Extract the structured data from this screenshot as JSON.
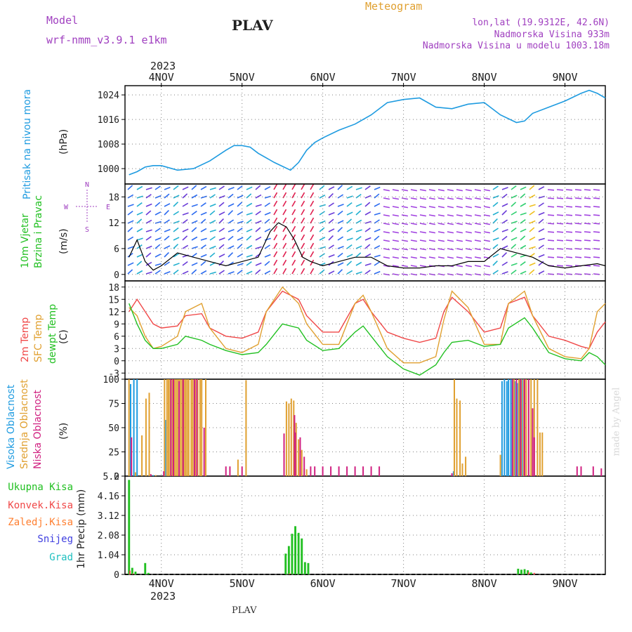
{
  "header": {
    "model_label": "Model",
    "model_name": "wrf-nmm_v3.9.1 e1km",
    "station": "PLAV",
    "meteogram": "Meteogram",
    "lonlat": "lon,lat (19.9312E, 42.6N)",
    "elevation": "Nadmorska Visina 933m",
    "model_elevation": "Nadmorska Visina u modelu 1003.18m"
  },
  "footer": {
    "station": "PLAV",
    "credit": "made by Angel"
  },
  "colors": {
    "pressure": "#1e9be0",
    "t2m": "#f04848",
    "tsfc": "#e0a030",
    "dewpt": "#22c022",
    "cloud_high": "#1e9be0",
    "cloud_mid": "#e0a030",
    "cloud_low": "#d02080",
    "rain_total": "#22c022",
    "rain_conv": "#f04848",
    "rain_frozen": "#ff7f30",
    "snow": "#4040e0",
    "graupel": "#20c0c0",
    "wind_axis": "#a040c0"
  },
  "wind_legend": {
    "w": "W",
    "e": "E",
    "n": "N",
    "s": "S"
  },
  "chart_data": [
    {
      "type": "line",
      "name": "pressure",
      "ylabel": "Pritisak na nivou mora",
      "unit": "(hPa)",
      "ylim": [
        995,
        1027
      ],
      "yticks": [
        1000,
        1008,
        1016,
        1024
      ],
      "x_days": [
        "4NOV",
        "5NOV",
        "6NOV",
        "7NOV",
        "8NOV",
        "9NOV"
      ],
      "year": "2023",
      "x": [
        3.6,
        3.7,
        3.8,
        3.9,
        4.0,
        4.2,
        4.4,
        4.6,
        4.8,
        4.9,
        5.0,
        5.1,
        5.2,
        5.4,
        5.6,
        5.7,
        5.8,
        5.9,
        6.0,
        6.2,
        6.4,
        6.6,
        6.8,
        7.0,
        7.2,
        7.4,
        7.6,
        7.8,
        8.0,
        8.2,
        8.4,
        8.5,
        8.6,
        8.8,
        9.0,
        9.2,
        9.3,
        9.4,
        9.5
      ],
      "values": [
        998,
        999,
        1000.5,
        1001,
        1001,
        999.5,
        1000,
        1002.5,
        1006,
        1007.5,
        1007.5,
        1007,
        1005,
        1002,
        999.5,
        1002,
        1006,
        1008.5,
        1010,
        1012.5,
        1014.5,
        1017.5,
        1021.5,
        1022.5,
        1023,
        1020,
        1019.5,
        1021,
        1021.5,
        1017.5,
        1015,
        1015.5,
        1018,
        1020,
        1022,
        1024.5,
        1025.5,
        1024.5,
        1023
      ]
    },
    {
      "type": "line",
      "name": "wind",
      "ylabel": "10m Vjetar",
      "ylabel2": "Brzina i Pravac",
      "unit": "(m/s)",
      "ylim": [
        -1.5,
        21
      ],
      "yticks": [
        0,
        6,
        12,
        18
      ],
      "x": [
        3.6,
        3.7,
        3.8,
        3.9,
        4.0,
        4.2,
        4.4,
        4.6,
        4.8,
        5.0,
        5.2,
        5.35,
        5.45,
        5.55,
        5.65,
        5.75,
        5.85,
        6.0,
        6.2,
        6.4,
        6.6,
        6.8,
        7.0,
        7.2,
        7.4,
        7.6,
        7.8,
        8.0,
        8.2,
        8.4,
        8.6,
        8.8,
        9.0,
        9.2,
        9.4,
        9.5
      ],
      "values": [
        4,
        8,
        3,
        1,
        2,
        5,
        4,
        3,
        2,
        3,
        4,
        10,
        12,
        11,
        8,
        4,
        3,
        2,
        3,
        4,
        4,
        2,
        1.5,
        1.5,
        2,
        2,
        3,
        3,
        6,
        5,
        4,
        2,
        1.5,
        2,
        2.5,
        2
      ]
    },
    {
      "type": "line",
      "name": "temperature",
      "ylabel": "2m Temp",
      "ylabel2": "SFC Temp",
      "ylabel3": "dewpt Temp",
      "unit": "(C)",
      "ylim": [
        -4.5,
        19.5
      ],
      "yticks": [
        -3,
        0,
        3,
        6,
        9,
        12,
        15,
        18
      ],
      "series": [
        {
          "name": "2m Temp",
          "x": [
            3.6,
            3.7,
            3.8,
            3.9,
            4.0,
            4.2,
            4.3,
            4.5,
            4.6,
            4.8,
            5.0,
            5.2,
            5.3,
            5.5,
            5.7,
            5.8,
            6.0,
            6.2,
            6.4,
            6.5,
            6.6,
            6.8,
            7.0,
            7.2,
            7.4,
            7.5,
            7.6,
            7.8,
            8.0,
            8.2,
            8.3,
            8.5,
            8.6,
            8.8,
            9.0,
            9.2,
            9.3,
            9.4,
            9.5
          ],
          "values": [
            12,
            15,
            12,
            9,
            8,
            8.5,
            11,
            11.5,
            8,
            6,
            5.5,
            7,
            12,
            17,
            15,
            11,
            7,
            7,
            14,
            15,
            12,
            7,
            5.5,
            4.5,
            5.5,
            12,
            15.5,
            12,
            7,
            8,
            14,
            15.5,
            11,
            6,
            5,
            3.5,
            3,
            7,
            9.5
          ]
        },
        {
          "name": "SFC Temp",
          "x": [
            3.6,
            3.7,
            3.8,
            3.9,
            4.0,
            4.2,
            4.3,
            4.5,
            4.6,
            4.8,
            5.0,
            5.2,
            5.3,
            5.5,
            5.7,
            5.8,
            6.0,
            6.2,
            6.4,
            6.5,
            6.6,
            6.8,
            7.0,
            7.2,
            7.4,
            7.5,
            7.6,
            7.8,
            8.0,
            8.2,
            8.3,
            8.5,
            8.6,
            8.8,
            9.0,
            9.2,
            9.3,
            9.4,
            9.5
          ],
          "values": [
            13,
            11,
            6,
            3,
            3.5,
            6,
            12,
            14,
            8,
            3,
            2,
            4,
            12,
            18,
            14,
            9,
            4,
            4,
            14,
            16,
            12,
            3,
            -0.5,
            -0.5,
            1,
            10,
            17,
            13,
            4,
            4,
            14,
            17,
            11,
            3,
            1,
            0.5,
            3,
            12,
            14
          ]
        },
        {
          "name": "dewpt Temp",
          "x": [
            3.6,
            3.7,
            3.8,
            3.9,
            4.0,
            4.2,
            4.3,
            4.5,
            4.6,
            4.8,
            5.0,
            5.2,
            5.3,
            5.5,
            5.7,
            5.8,
            6.0,
            6.2,
            6.4,
            6.5,
            6.6,
            6.8,
            7.0,
            7.2,
            7.4,
            7.5,
            7.6,
            7.8,
            8.0,
            8.2,
            8.3,
            8.5,
            8.6,
            8.8,
            9.0,
            9.2,
            9.3,
            9.4,
            9.5
          ],
          "values": [
            14,
            9,
            5,
            3,
            3,
            4,
            6,
            5,
            4,
            2.5,
            1.5,
            2,
            4,
            9,
            8,
            5,
            2.5,
            3,
            7,
            8.5,
            6,
            1,
            -2,
            -3.5,
            -1,
            2,
            4.5,
            5,
            3.5,
            4,
            8,
            10.5,
            8,
            2,
            0.5,
            0,
            2,
            1,
            -1
          ]
        }
      ]
    },
    {
      "type": "bar",
      "name": "cloudiness",
      "ylabel": "Visoka Oblacnost",
      "ylabel2": "Srednja Oblacnost",
      "ylabel3": "Niska Oblacnost",
      "unit": "(%)",
      "ylim": [
        0,
        100
      ],
      "yticks": [
        0,
        25,
        50,
        75,
        100
      ],
      "bar_width_days": 0.011,
      "series": [
        {
          "name": "Visoka Oblacnost",
          "x": [
            3.62,
            3.66,
            3.7,
            3.85,
            3.9,
            4.05,
            7.62,
            8.22,
            8.25,
            8.28,
            8.3,
            8.33,
            8.35,
            8.38,
            8.41,
            8.44,
            8.47,
            8.5
          ],
          "values": [
            95,
            100,
            100,
            2,
            1,
            58,
            5,
            98,
            100,
            98,
            100,
            100,
            99,
            98,
            96,
            100,
            100,
            97
          ]
        },
        {
          "name": "Srednja Oblacnost",
          "x": [
            3.6,
            3.68,
            3.76,
            3.81,
            3.85,
            3.93,
            4.04,
            4.07,
            4.09,
            4.11,
            4.14,
            4.16,
            4.18,
            4.2,
            4.22,
            4.24,
            4.26,
            4.28,
            4.3,
            4.32,
            4.34,
            4.37,
            4.39,
            4.42,
            4.45,
            4.48,
            4.5,
            4.55,
            4.95,
            5.05,
            5.55,
            5.58,
            5.61,
            5.64,
            5.67,
            5.7,
            5.74,
            5.77,
            5.8,
            7.63,
            7.66,
            7.7,
            7.73,
            7.77,
            8.2,
            8.37,
            8.4,
            8.43,
            8.46,
            8.49,
            8.52,
            8.55,
            8.58,
            8.62,
            8.66,
            8.69,
            8.72
          ],
          "values": [
            100,
            4,
            42,
            80,
            86,
            1,
            100,
            100,
            100,
            100,
            100,
            100,
            100,
            100,
            100,
            100,
            100,
            100,
            100,
            100,
            100,
            100,
            100,
            100,
            100,
            100,
            100,
            100,
            17,
            99,
            77,
            75,
            80,
            78,
            55,
            38,
            27,
            8,
            7,
            100,
            80,
            78,
            13,
            20,
            22,
            100,
            100,
            100,
            100,
            100,
            100,
            100,
            100,
            100,
            100,
            45,
            45
          ]
        },
        {
          "name": "Niska Oblacnost",
          "x": [
            3.63,
            3.87,
            4.03,
            4.12,
            4.15,
            4.22,
            4.27,
            4.41,
            4.44,
            4.53,
            4.8,
            4.85,
            5.0,
            5.52,
            5.65,
            5.66,
            5.72,
            5.77,
            5.85,
            5.9,
            6.0,
            6.1,
            6.2,
            6.3,
            6.4,
            6.5,
            6.6,
            6.7,
            7.6,
            8.35,
            8.4,
            8.45,
            8.5,
            8.55,
            8.6,
            8.62,
            9.15,
            9.2,
            9.35,
            9.45
          ],
          "values": [
            40,
            2,
            5,
            100,
            100,
            98,
            100,
            100,
            100,
            50,
            10,
            10,
            10,
            44,
            63,
            45,
            40,
            20,
            10,
            10,
            10,
            10,
            10,
            10,
            10,
            10,
            10,
            10,
            3,
            100,
            100,
            100,
            100,
            100,
            70,
            40,
            10,
            10,
            10,
            8
          ]
        }
      ]
    },
    {
      "type": "bar",
      "name": "precipitation",
      "ylabel": "1hr Precip (mm)",
      "ylim": [
        0,
        5.2
      ],
      "yticks": [
        0,
        1.04,
        2.08,
        3.12,
        4.16,
        5.2
      ],
      "bar_width_days": 0.025,
      "legend": [
        "Ukupna Kisa",
        "Konvek.Kisa",
        "Zaledj.Kisa",
        "Snijeg",
        "Grad"
      ],
      "series": [
        {
          "name": "Ukupna Kisa",
          "x": [
            3.6,
            3.64,
            3.68,
            3.8,
            3.84,
            5.54,
            5.58,
            5.62,
            5.66,
            5.7,
            5.74,
            5.78,
            5.82,
            8.42,
            8.46,
            8.5,
            8.54,
            8.58
          ],
          "values": [
            5.0,
            0.35,
            0.15,
            0.6,
            0.08,
            1.1,
            1.5,
            2.15,
            2.55,
            2.2,
            1.9,
            0.65,
            0.6,
            0.3,
            0.25,
            0.28,
            0.22,
            0.1
          ]
        },
        {
          "name": "Konvek.Kisa",
          "x": [
            3.61,
            3.65,
            5.59,
            8.55,
            8.62
          ],
          "values": [
            0.2,
            0.05,
            0.05,
            0.12,
            0.08
          ]
        }
      ]
    }
  ]
}
